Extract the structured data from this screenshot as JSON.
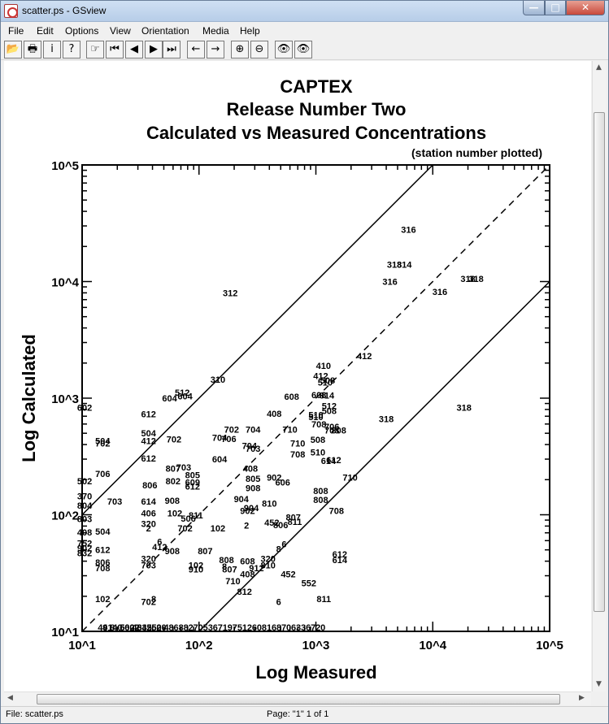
{
  "window": {
    "title": "scatter.ps - GSview",
    "controls": {
      "minimize": "—",
      "maximize": "□",
      "close": "✕"
    }
  },
  "menu": [
    "File",
    "Edit",
    "Options",
    "View",
    "Orientation",
    "Media",
    "Help"
  ],
  "toolbar": [
    {
      "name": "open-icon",
      "glyph": "📂"
    },
    {
      "name": "print-icon",
      "glyph": "🖶"
    },
    {
      "name": "info-icon",
      "glyph": "i"
    },
    {
      "name": "help-icon",
      "glyph": "?"
    },
    {
      "name": "goto-page-icon",
      "glyph": "☞"
    },
    {
      "name": "first-page-icon",
      "glyph": "⏮"
    },
    {
      "name": "prev-page-icon",
      "glyph": "◀"
    },
    {
      "name": "next-page-icon",
      "glyph": "▶"
    },
    {
      "name": "last-page-icon",
      "glyph": "⏭"
    },
    {
      "name": "back-icon",
      "glyph": "←"
    },
    {
      "name": "forward-icon",
      "glyph": "→"
    },
    {
      "name": "zoom-in-icon",
      "glyph": "⊕"
    },
    {
      "name": "zoom-out-icon",
      "glyph": "⊖"
    },
    {
      "name": "find-text-icon",
      "glyph": "👁"
    },
    {
      "name": "find-next-icon",
      "glyph": "👁"
    }
  ],
  "status": {
    "file": "File: scatter.ps",
    "page": "Page: \"1\"  1 of 1"
  },
  "chart_data": {
    "type": "scatter",
    "title": [
      "CAPTEX",
      "Release Number Two",
      "Calculated vs Measured Concentrations"
    ],
    "subtitle": "(station number plotted)",
    "xlabel": "Log Measured",
    "ylabel": "Log Calculated",
    "x_scale": "log10",
    "y_scale": "log10",
    "xlim": [
      10,
      100000
    ],
    "ylim": [
      10,
      100000
    ],
    "x_ticks": [
      "10^1",
      "10^2",
      "10^3",
      "10^4",
      "10^5"
    ],
    "y_ticks": [
      "10^1",
      "10^2",
      "10^3",
      "10^4",
      "10^5"
    ],
    "reference_lines": [
      {
        "style": "solid",
        "ratio": 10
      },
      {
        "style": "dashed",
        "ratio": 1
      },
      {
        "style": "solid",
        "ratio": 0.1
      }
    ],
    "grid": false,
    "points": [
      {
        "label": "316",
        "x": 6200,
        "y": 28000
      },
      {
        "label": "318",
        "x": 4700,
        "y": 14000
      },
      {
        "label": "314",
        "x": 5700,
        "y": 14000
      },
      {
        "label": "316",
        "x": 4300,
        "y": 10000
      },
      {
        "label": "318",
        "x": 20000,
        "y": 10600
      },
      {
        "label": "318",
        "x": 23500,
        "y": 10600
      },
      {
        "label": "316",
        "x": 11500,
        "y": 8200
      },
      {
        "label": "312",
        "x": 185,
        "y": 8000
      },
      {
        "label": "412",
        "x": 2600,
        "y": 2300
      },
      {
        "label": "410",
        "x": 1160,
        "y": 1900
      },
      {
        "label": "412",
        "x": 1100,
        "y": 1550
      },
      {
        "label": "508",
        "x": 1260,
        "y": 1420
      },
      {
        "label": "510",
        "x": 1200,
        "y": 1370
      },
      {
        "label": "310",
        "x": 145,
        "y": 1450
      },
      {
        "label": "512",
        "x": 72,
        "y": 1120
      },
      {
        "label": "604",
        "x": 56,
        "y": 1000
      },
      {
        "label": "604",
        "x": 76,
        "y": 1040
      },
      {
        "label": "608",
        "x": 620,
        "y": 1030
      },
      {
        "label": "608",
        "x": 1060,
        "y": 1070
      },
      {
        "label": "814",
        "x": 1240,
        "y": 1060
      },
      {
        "label": "512",
        "x": 1300,
        "y": 860
      },
      {
        "label": "508",
        "x": 1300,
        "y": 780
      },
      {
        "label": "510",
        "x": 1000,
        "y": 720
      },
      {
        "label": "510",
        "x": 1000,
        "y": 690
      },
      {
        "label": "318",
        "x": 4000,
        "y": 665
      },
      {
        "label": "318",
        "x": 18500,
        "y": 830
      },
      {
        "label": "602",
        "x": 10.5,
        "y": 830
      },
      {
        "label": "612",
        "x": 37,
        "y": 730
      },
      {
        "label": "408",
        "x": 440,
        "y": 740
      },
      {
        "label": "708",
        "x": 1060,
        "y": 600
      },
      {
        "label": "706",
        "x": 1370,
        "y": 570
      },
      {
        "label": "708",
        "x": 1370,
        "y": 530
      },
      {
        "label": "808",
        "x": 1570,
        "y": 530
      },
      {
        "label": "702",
        "x": 190,
        "y": 540
      },
      {
        "label": "704",
        "x": 290,
        "y": 540
      },
      {
        "label": "710",
        "x": 600,
        "y": 540
      },
      {
        "label": "704",
        "x": 150,
        "y": 460
      },
      {
        "label": "706",
        "x": 180,
        "y": 450
      },
      {
        "label": "504",
        "x": 37,
        "y": 500
      },
      {
        "label": "412",
        "x": 37,
        "y": 430
      },
      {
        "label": "702",
        "x": 61,
        "y": 445
      },
      {
        "label": "504",
        "x": 15,
        "y": 430
      },
      {
        "label": "702",
        "x": 15,
        "y": 410
      },
      {
        "label": "508",
        "x": 1040,
        "y": 440
      },
      {
        "label": "710",
        "x": 700,
        "y": 410
      },
      {
        "label": "704",
        "x": 270,
        "y": 390
      },
      {
        "label": "703",
        "x": 290,
        "y": 370
      },
      {
        "label": "612",
        "x": 37,
        "y": 305
      },
      {
        "label": "604",
        "x": 150,
        "y": 300
      },
      {
        "label": "510",
        "x": 1040,
        "y": 345
      },
      {
        "label": "708",
        "x": 700,
        "y": 330
      },
      {
        "label": "612",
        "x": 1420,
        "y": 295
      },
      {
        "label": "614",
        "x": 1280,
        "y": 290
      },
      {
        "label": "807",
        "x": 60,
        "y": 250
      },
      {
        "label": "703",
        "x": 74,
        "y": 255
      },
      {
        "label": "706",
        "x": 15,
        "y": 225
      },
      {
        "label": "408",
        "x": 275,
        "y": 250
      },
      {
        "label": "805",
        "x": 88,
        "y": 220
      },
      {
        "label": "802",
        "x": 60,
        "y": 195
      },
      {
        "label": "502",
        "x": 10.5,
        "y": 195
      },
      {
        "label": "806",
        "x": 38,
        "y": 180
      },
      {
        "label": "609",
        "x": 88,
        "y": 190
      },
      {
        "label": "612",
        "x": 88,
        "y": 175
      },
      {
        "label": "805",
        "x": 290,
        "y": 205
      },
      {
        "label": "902",
        "x": 440,
        "y": 210
      },
      {
        "label": "606",
        "x": 520,
        "y": 190
      },
      {
        "label": "908",
        "x": 290,
        "y": 170
      },
      {
        "label": "710",
        "x": 1960,
        "y": 210
      },
      {
        "label": "370",
        "x": 10.5,
        "y": 145
      },
      {
        "label": "808",
        "x": 1100,
        "y": 160
      },
      {
        "label": "808",
        "x": 1100,
        "y": 135
      },
      {
        "label": "804",
        "x": 10.5,
        "y": 120
      },
      {
        "label": "703",
        "x": 19,
        "y": 130
      },
      {
        "label": "614",
        "x": 37,
        "y": 130
      },
      {
        "label": "908",
        "x": 59,
        "y": 132
      },
      {
        "label": "904",
        "x": 230,
        "y": 137
      },
      {
        "label": "810",
        "x": 400,
        "y": 125
      },
      {
        "label": "904",
        "x": 280,
        "y": 115
      },
      {
        "label": "902",
        "x": 260,
        "y": 108
      },
      {
        "label": "708",
        "x": 1500,
        "y": 108
      },
      {
        "label": "406",
        "x": 37,
        "y": 103
      },
      {
        "label": "102",
        "x": 62,
        "y": 103
      },
      {
        "label": "811",
        "x": 94,
        "y": 99
      },
      {
        "label": "506",
        "x": 81,
        "y": 93
      },
      {
        "label": "803",
        "x": 10.5,
        "y": 92
      },
      {
        "label": "807",
        "x": 640,
        "y": 95
      },
      {
        "label": "811",
        "x": 660,
        "y": 87
      },
      {
        "label": "452",
        "x": 420,
        "y": 86
      },
      {
        "label": "806",
        "x": 500,
        "y": 82
      },
      {
        "label": "320",
        "x": 37,
        "y": 84
      },
      {
        "label": "2",
        "x": 37,
        "y": 77
      },
      {
        "label": "702",
        "x": 76,
        "y": 77
      },
      {
        "label": "102",
        "x": 145,
        "y": 77
      },
      {
        "label": "2",
        "x": 255,
        "y": 81
      },
      {
        "label": "504",
        "x": 15,
        "y": 72
      },
      {
        "label": "408",
        "x": 10.5,
        "y": 71
      },
      {
        "label": "752",
        "x": 10.5,
        "y": 57
      },
      {
        "label": "902",
        "x": 10.5,
        "y": 52
      },
      {
        "label": "6",
        "x": 46,
        "y": 59
      },
      {
        "label": "412",
        "x": 46,
        "y": 53
      },
      {
        "label": "908",
        "x": 59,
        "y": 49
      },
      {
        "label": "612",
        "x": 15,
        "y": 50
      },
      {
        "label": "832",
        "x": 10.5,
        "y": 47
      },
      {
        "label": "6",
        "x": 535,
        "y": 56
      },
      {
        "label": "8",
        "x": 480,
        "y": 51
      },
      {
        "label": "807",
        "x": 113,
        "y": 49
      },
      {
        "label": "612",
        "x": 1600,
        "y": 46
      },
      {
        "label": "320",
        "x": 37,
        "y": 42
      },
      {
        "label": "808",
        "x": 172,
        "y": 41
      },
      {
        "label": "608",
        "x": 260,
        "y": 40
      },
      {
        "label": "320",
        "x": 390,
        "y": 42
      },
      {
        "label": "614",
        "x": 1600,
        "y": 41
      },
      {
        "label": "806",
        "x": 15,
        "y": 39
      },
      {
        "label": "703",
        "x": 37,
        "y": 37
      },
      {
        "label": "102",
        "x": 94,
        "y": 37
      },
      {
        "label": "8",
        "x": 165,
        "y": 36
      },
      {
        "label": "910",
        "x": 94,
        "y": 34
      },
      {
        "label": "807",
        "x": 183,
        "y": 34
      },
      {
        "label": "912",
        "x": 310,
        "y": 35
      },
      {
        "label": "810",
        "x": 390,
        "y": 37
      },
      {
        "label": "708",
        "x": 15,
        "y": 35
      },
      {
        "label": "408",
        "x": 260,
        "y": 31
      },
      {
        "label": "452",
        "x": 580,
        "y": 31
      },
      {
        "label": "710",
        "x": 195,
        "y": 27
      },
      {
        "label": "552",
        "x": 870,
        "y": 26
      },
      {
        "label": "812",
        "x": 245,
        "y": 22
      },
      {
        "label": "102",
        "x": 15,
        "y": 19
      },
      {
        "label": "8",
        "x": 41,
        "y": 19
      },
      {
        "label": "702",
        "x": 37,
        "y": 18
      },
      {
        "label": "6",
        "x": 480,
        "y": 18
      },
      {
        "label": "811",
        "x": 1170,
        "y": 19
      }
    ],
    "baseline_labels": [
      "49",
      "41",
      "8",
      "40",
      "5",
      "602",
      "602",
      "46",
      "34",
      "35",
      "25",
      "50",
      "20",
      "4",
      "8",
      "6",
      "8",
      "8",
      "2",
      "7",
      "0",
      "5",
      "3",
      "6",
      "7",
      "1",
      "9",
      "7",
      "5",
      "1",
      "2",
      "6",
      "0",
      "8",
      "1",
      "6",
      "8",
      "7",
      "0",
      "6",
      "3",
      "3",
      "6",
      "7",
      "2",
      "0"
    ]
  }
}
